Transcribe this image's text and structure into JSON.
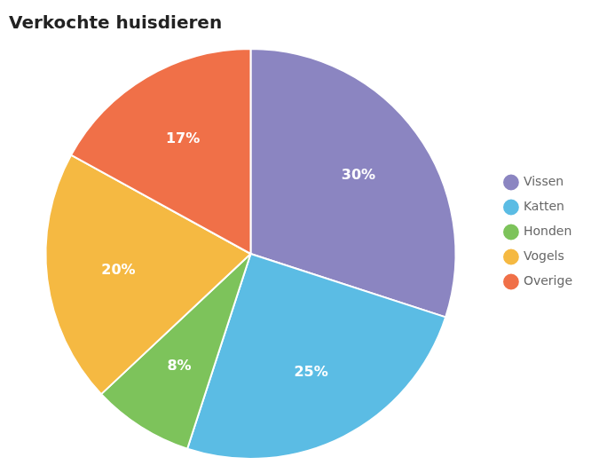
{
  "chart_data": {
    "type": "pie",
    "title": "Verkochte huisdieren",
    "categories": [
      "Vissen",
      "Katten",
      "Honden",
      "Vogels",
      "Overige"
    ],
    "values": [
      30,
      25,
      8,
      20,
      17
    ],
    "value_labels": [
      "30%",
      "25%",
      "8%",
      "20%",
      "17%"
    ],
    "colors": [
      "#8b85c1",
      "#5bbce4",
      "#7dc35b",
      "#f5b942",
      "#f07048"
    ],
    "data_labels": true,
    "legend": "right"
  }
}
